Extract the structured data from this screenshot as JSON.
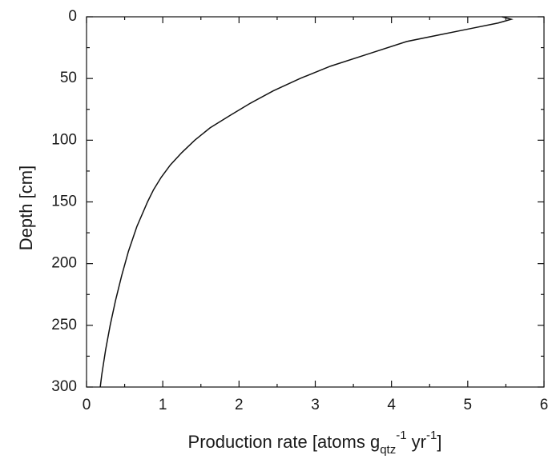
{
  "chart_data": {
    "type": "line",
    "title": "",
    "xlabel": "Production rate [atoms g",
    "xlabel_sub": "qtz",
    "xlabel_sup1": "-1",
    "xlabel_mid": " yr",
    "xlabel_sup2": "-1",
    "xlabel_end": "]",
    "ylabel": "Depth [cm]",
    "xlim": [
      0,
      6
    ],
    "ylim": [
      0,
      300
    ],
    "y_inverted": true,
    "grid": false,
    "x_ticks": [
      "0",
      "1",
      "2",
      "3",
      "4",
      "5",
      "6"
    ],
    "y_ticks": [
      "0",
      "50",
      "100",
      "150",
      "200",
      "250",
      "300"
    ],
    "series": [
      {
        "color": "#111111",
        "points": [
          {
            "x": 5.45,
            "y": 0
          },
          {
            "x": 5.57,
            "y": 2
          },
          {
            "x": 5.4,
            "y": 5
          },
          {
            "x": 5.0,
            "y": 10
          },
          {
            "x": 4.6,
            "y": 15
          },
          {
            "x": 4.2,
            "y": 20
          },
          {
            "x": 3.7,
            "y": 30
          },
          {
            "x": 3.2,
            "y": 40
          },
          {
            "x": 2.8,
            "y": 50
          },
          {
            "x": 2.45,
            "y": 60
          },
          {
            "x": 2.15,
            "y": 70
          },
          {
            "x": 1.88,
            "y": 80
          },
          {
            "x": 1.62,
            "y": 90
          },
          {
            "x": 1.42,
            "y": 100
          },
          {
            "x": 1.25,
            "y": 110
          },
          {
            "x": 1.1,
            "y": 120
          },
          {
            "x": 0.98,
            "y": 130
          },
          {
            "x": 0.88,
            "y": 140
          },
          {
            "x": 0.8,
            "y": 150
          },
          {
            "x": 0.66,
            "y": 170
          },
          {
            "x": 0.55,
            "y": 190
          },
          {
            "x": 0.46,
            "y": 210
          },
          {
            "x": 0.38,
            "y": 230
          },
          {
            "x": 0.31,
            "y": 250
          },
          {
            "x": 0.25,
            "y": 270
          },
          {
            "x": 0.2,
            "y": 290
          },
          {
            "x": 0.18,
            "y": 300
          }
        ]
      }
    ]
  }
}
